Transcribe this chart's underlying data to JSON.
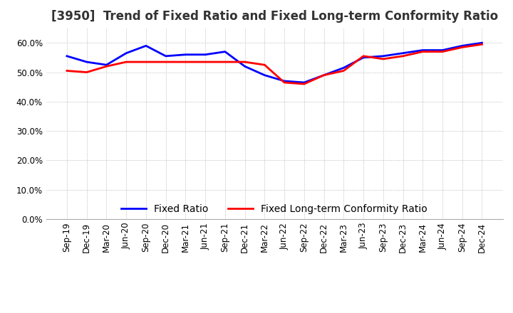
{
  "title": "[3950]  Trend of Fixed Ratio and Fixed Long-term Conformity Ratio",
  "x_labels": [
    "Sep-19",
    "Dec-19",
    "Mar-20",
    "Jun-20",
    "Sep-20",
    "Dec-20",
    "Mar-21",
    "Jun-21",
    "Sep-21",
    "Dec-21",
    "Mar-22",
    "Jun-22",
    "Sep-22",
    "Dec-22",
    "Mar-23",
    "Jun-23",
    "Sep-23",
    "Dec-23",
    "Mar-24",
    "Jun-24",
    "Sep-24",
    "Dec-24"
  ],
  "fixed_ratio": [
    55.5,
    53.5,
    52.5,
    56.5,
    59.0,
    55.5,
    56.0,
    56.0,
    57.0,
    52.0,
    49.0,
    47.0,
    46.5,
    49.0,
    51.5,
    55.0,
    55.5,
    56.5,
    57.5,
    57.5,
    59.0,
    60.0
  ],
  "fixed_lt_ratio": [
    50.5,
    50.0,
    52.0,
    53.5,
    53.5,
    53.5,
    53.5,
    53.5,
    53.5,
    53.5,
    52.5,
    46.5,
    46.0,
    49.0,
    50.5,
    55.5,
    54.5,
    55.5,
    57.0,
    57.0,
    58.5,
    59.5
  ],
  "ylim": [
    0,
    65
  ],
  "yticks": [
    0.0,
    10.0,
    20.0,
    30.0,
    40.0,
    50.0,
    60.0
  ],
  "fixed_ratio_color": "#0000FF",
  "fixed_lt_ratio_color": "#FF0000",
  "background_color": "#FFFFFF",
  "grid_color": "#AAAAAA",
  "title_fontsize": 12,
  "legend_fontsize": 10,
  "tick_fontsize": 8.5
}
